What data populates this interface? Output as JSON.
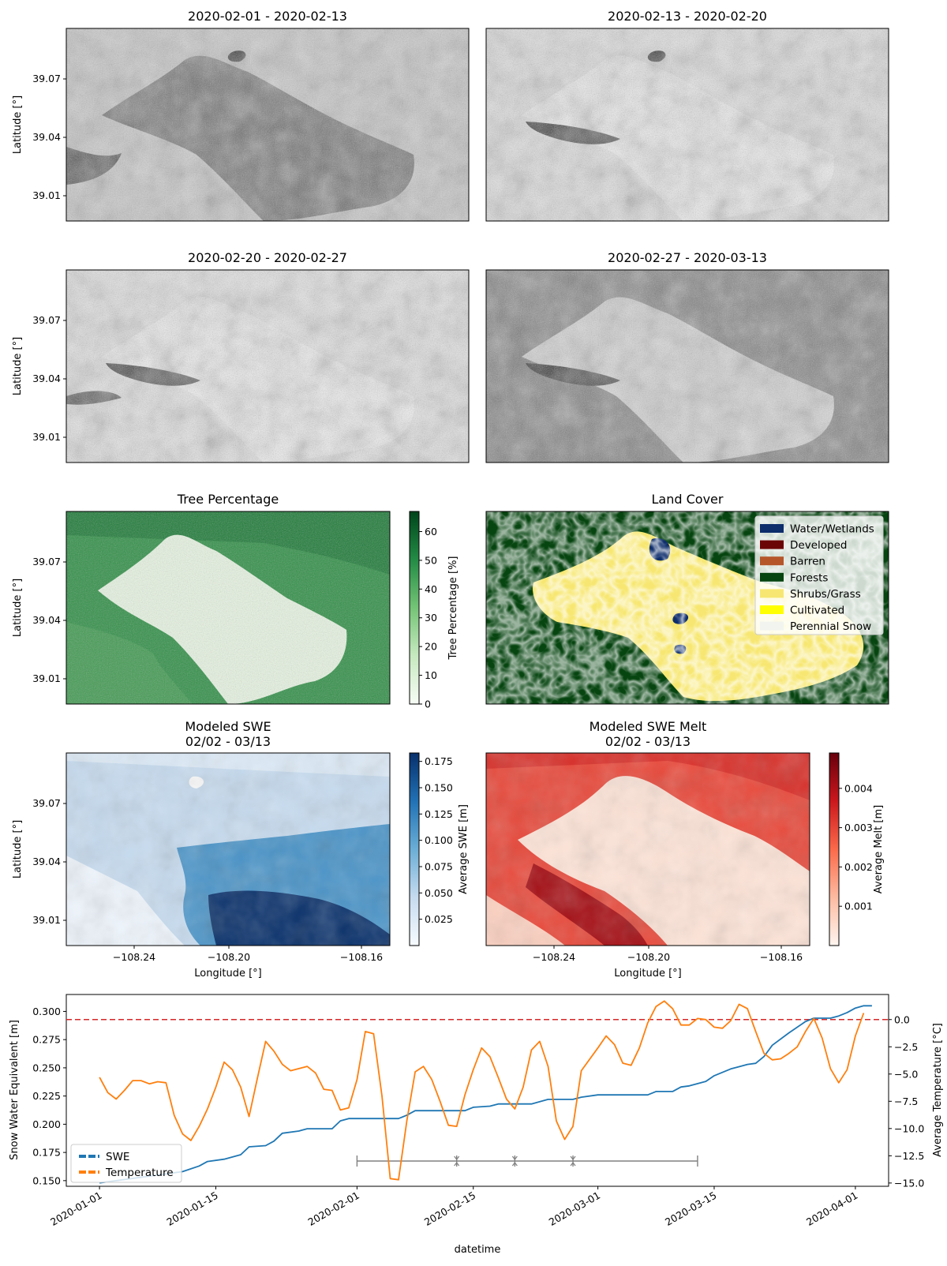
{
  "sar_panels": {
    "titles": [
      "2020-02-01 - 2020-02-13",
      "2020-02-13 - 2020-02-20",
      "2020-02-20 - 2020-02-27",
      "2020-02-27 - 2020-03-13"
    ],
    "ylabel": "Latitude [°]",
    "yticks": [
      "39.07",
      "39.04",
      "39.01"
    ]
  },
  "tree_panel": {
    "title": "Tree Percentage",
    "ylabel": "Latitude [°]",
    "yticks": [
      "39.07",
      "39.04",
      "39.01"
    ],
    "colorbar_label": "Tree Percentage [%]",
    "colorbar_ticks": [
      "0",
      "10",
      "20",
      "30",
      "40",
      "50",
      "60"
    ],
    "colorbar_range": [
      0,
      67
    ]
  },
  "landcover_panel": {
    "title": "Land Cover",
    "legend": [
      {
        "label": "Water/Wetlands",
        "color": "#0d2d6b"
      },
      {
        "label": "Developed",
        "color": "#6b0606"
      },
      {
        "label": "Barren",
        "color": "#b5562a"
      },
      {
        "label": "Forests",
        "color": "#064410"
      },
      {
        "label": "Shrubs/Grass",
        "color": "#f7e772"
      },
      {
        "label": "Cultivated",
        "color": "#ffff00"
      },
      {
        "label": "Perennial Snow",
        "color": "#f2f5ef"
      }
    ]
  },
  "swe_panel": {
    "title_line1": "Modeled SWE",
    "title_line2": "02/02 - 03/13",
    "ylabel": "Latitude [°]",
    "yticks": [
      "39.07",
      "39.04",
      "39.01"
    ],
    "xlabel": "Longitude [°]",
    "xticks": [
      "−108.24",
      "−108.20",
      "−108.16"
    ],
    "colorbar_label": "Average SWE [m]",
    "colorbar_ticks": [
      "0.025",
      "0.050",
      "0.075",
      "0.100",
      "0.125",
      "0.150",
      "0.175"
    ],
    "colorbar_range": [
      0.0,
      0.183
    ]
  },
  "melt_panel": {
    "title_line1": "Modeled SWE Melt",
    "title_line2": "02/02 - 03/13",
    "xlabel": "Longitude [°]",
    "xticks": [
      "−108.24",
      "−108.20",
      "−108.16"
    ],
    "colorbar_label": "Average Melt [m]",
    "colorbar_ticks": [
      "0.001",
      "0.002",
      "0.003",
      "0.004"
    ],
    "colorbar_range": [
      0.0,
      0.0049
    ]
  },
  "timeseries": {
    "xlabel": "datetime",
    "ylabel_left": "Snow Water Equivalent [m]",
    "ylabel_right": "Average Temperature [°C]",
    "xticks": [
      "2020-01-01",
      "2020-01-15",
      "2020-02-01",
      "2020-02-15",
      "2020-03-01",
      "2020-03-15",
      "2020-04-01"
    ],
    "yticks_left": [
      "0.150",
      "0.175",
      "0.200",
      "0.225",
      "0.250",
      "0.275",
      "0.300"
    ],
    "yticks_right": [
      "−15.0",
      "−12.5",
      "−10.0",
      "−7.5",
      "−5.0",
      "−2.5",
      "0.0"
    ],
    "legend": [
      "SWE",
      "Temperature"
    ],
    "colors": {
      "swe": "#1f77b4",
      "temp": "#ff7f0e",
      "zero_line": "#d62728",
      "periods": "#808080"
    }
  },
  "chart_data": [
    {
      "type": "line",
      "x_range": [
        "2019-12-28",
        "2020-04-05"
      ],
      "ylim_left": [
        0.145,
        0.315
      ],
      "ylim_right": [
        -15.3,
        2.3
      ],
      "zero_line_temperature": 0.0,
      "period_markers": [
        "2020-02-01",
        "2020-02-13",
        "2020-02-20",
        "2020-02-27",
        "2020-03-13"
      ],
      "series": [
        {
          "name": "SWE",
          "axis": "left",
          "points": [
            [
              "2020-01-01",
              0.148
            ],
            [
              "2020-01-03",
              0.15
            ],
            [
              "2020-01-05",
              0.152
            ],
            [
              "2020-01-07",
              0.154
            ],
            [
              "2020-01-09",
              0.156
            ],
            [
              "2020-01-11",
              0.158
            ],
            [
              "2020-01-13",
              0.163
            ],
            [
              "2020-01-14",
              0.167
            ],
            [
              "2020-01-16",
              0.169
            ],
            [
              "2020-01-18",
              0.173
            ],
            [
              "2020-01-19",
              0.18
            ],
            [
              "2020-01-21",
              0.181
            ],
            [
              "2020-01-22",
              0.185
            ],
            [
              "2020-01-23",
              0.192
            ],
            [
              "2020-01-25",
              0.194
            ],
            [
              "2020-01-26",
              0.196
            ],
            [
              "2020-01-29",
              0.196
            ],
            [
              "2020-01-30",
              0.203
            ],
            [
              "2020-01-31",
              0.205
            ],
            [
              "2020-02-06",
              0.205
            ],
            [
              "2020-02-07",
              0.208
            ],
            [
              "2020-02-08",
              0.212
            ],
            [
              "2020-02-14",
              0.212
            ],
            [
              "2020-02-15",
              0.215
            ],
            [
              "2020-02-17",
              0.216
            ],
            [
              "2020-02-18",
              0.218
            ],
            [
              "2020-02-22",
              0.218
            ],
            [
              "2020-02-24",
              0.222
            ],
            [
              "2020-02-27",
              0.222
            ],
            [
              "2020-02-28",
              0.224
            ],
            [
              "2020-03-01",
              0.226
            ],
            [
              "2020-03-07",
              0.226
            ],
            [
              "2020-03-08",
              0.229
            ],
            [
              "2020-03-10",
              0.229
            ],
            [
              "2020-03-11",
              0.233
            ],
            [
              "2020-03-12",
              0.234
            ],
            [
              "2020-03-14",
              0.238
            ],
            [
              "2020-03-15",
              0.243
            ],
            [
              "2020-03-17",
              0.249
            ],
            [
              "2020-03-18",
              0.251
            ],
            [
              "2020-03-19",
              0.253
            ],
            [
              "2020-03-20",
              0.254
            ],
            [
              "2020-03-21",
              0.26
            ],
            [
              "2020-03-22",
              0.27
            ],
            [
              "2020-03-24",
              0.281
            ],
            [
              "2020-03-26",
              0.291
            ],
            [
              "2020-03-27",
              0.294
            ],
            [
              "2020-03-29",
              0.294
            ],
            [
              "2020-03-30",
              0.296
            ],
            [
              "2020-03-31",
              0.299
            ],
            [
              "2020-04-01",
              0.303
            ],
            [
              "2020-04-02",
              0.305
            ],
            [
              "2020-04-03",
              0.305
            ]
          ]
        },
        {
          "name": "Temperature",
          "axis": "right",
          "points": [
            [
              "2020-01-01",
              -5.3
            ],
            [
              "2020-01-02",
              -6.7
            ],
            [
              "2020-01-03",
              -7.3
            ],
            [
              "2020-01-04",
              -6.5
            ],
            [
              "2020-01-05",
              -5.6
            ],
            [
              "2020-01-06",
              -5.6
            ],
            [
              "2020-01-07",
              -5.9
            ],
            [
              "2020-01-08",
              -5.7
            ],
            [
              "2020-01-09",
              -5.8
            ],
            [
              "2020-01-10",
              -8.8
            ],
            [
              "2020-01-11",
              -10.5
            ],
            [
              "2020-01-12",
              -11.1
            ],
            [
              "2020-01-13",
              -9.8
            ],
            [
              "2020-01-14",
              -8.2
            ],
            [
              "2020-01-15",
              -6.2
            ],
            [
              "2020-01-16",
              -3.9
            ],
            [
              "2020-01-17",
              -4.6
            ],
            [
              "2020-01-18",
              -6.2
            ],
            [
              "2020-01-19",
              -8.9
            ],
            [
              "2020-01-20",
              -5.4
            ],
            [
              "2020-01-21",
              -2.0
            ],
            [
              "2020-01-22",
              -2.9
            ],
            [
              "2020-01-23",
              -4.1
            ],
            [
              "2020-01-24",
              -4.7
            ],
            [
              "2020-01-25",
              -4.5
            ],
            [
              "2020-01-26",
              -4.3
            ],
            [
              "2020-01-27",
              -4.9
            ],
            [
              "2020-01-28",
              -6.4
            ],
            [
              "2020-01-29",
              -6.5
            ],
            [
              "2020-01-30",
              -8.3
            ],
            [
              "2020-01-31",
              -8.1
            ],
            [
              "2020-02-01",
              -5.5
            ],
            [
              "2020-02-02",
              -1.1
            ],
            [
              "2020-02-03",
              -1.3
            ],
            [
              "2020-02-04",
              -7.0
            ],
            [
              "2020-02-05",
              -14.6
            ],
            [
              "2020-02-06",
              -14.7
            ],
            [
              "2020-02-07",
              -9.3
            ],
            [
              "2020-02-08",
              -4.8
            ],
            [
              "2020-02-09",
              -4.3
            ],
            [
              "2020-02-10",
              -5.5
            ],
            [
              "2020-02-11",
              -7.5
            ],
            [
              "2020-02-12",
              -9.7
            ],
            [
              "2020-02-13",
              -9.8
            ],
            [
              "2020-02-14",
              -6.9
            ],
            [
              "2020-02-15",
              -4.6
            ],
            [
              "2020-02-16",
              -2.6
            ],
            [
              "2020-02-17",
              -3.4
            ],
            [
              "2020-02-18",
              -5.3
            ],
            [
              "2020-02-19",
              -7.3
            ],
            [
              "2020-02-20",
              -8.2
            ],
            [
              "2020-02-21",
              -6.2
            ],
            [
              "2020-02-22",
              -2.8
            ],
            [
              "2020-02-23",
              -2.0
            ],
            [
              "2020-02-24",
              -4.3
            ],
            [
              "2020-02-25",
              -9.3
            ],
            [
              "2020-02-26",
              -11.0
            ],
            [
              "2020-02-27",
              -9.8
            ],
            [
              "2020-02-28",
              -4.7
            ],
            [
              "2020-03-01",
              -2.6
            ],
            [
              "2020-03-02",
              -1.5
            ],
            [
              "2020-03-03",
              -2.3
            ],
            [
              "2020-03-04",
              -4.0
            ],
            [
              "2020-03-05",
              -4.2
            ],
            [
              "2020-03-06",
              -2.6
            ],
            [
              "2020-03-07",
              -0.3
            ],
            [
              "2020-03-08",
              1.2
            ],
            [
              "2020-03-09",
              1.7
            ],
            [
              "2020-03-10",
              1.0
            ],
            [
              "2020-03-11",
              -0.5
            ],
            [
              "2020-03-12",
              -0.5
            ],
            [
              "2020-03-13",
              0.1
            ],
            [
              "2020-03-14",
              0.0
            ],
            [
              "2020-03-15",
              -0.7
            ],
            [
              "2020-03-16",
              -0.8
            ],
            [
              "2020-03-17",
              -0.1
            ],
            [
              "2020-03-18",
              1.4
            ],
            [
              "2020-03-19",
              1.0
            ],
            [
              "2020-03-20",
              -1.1
            ],
            [
              "2020-03-21",
              -3.1
            ],
            [
              "2020-03-22",
              -3.7
            ],
            [
              "2020-03-23",
              -3.6
            ],
            [
              "2020-03-24",
              -3.1
            ],
            [
              "2020-03-25",
              -2.5
            ],
            [
              "2020-03-26",
              -1.1
            ],
            [
              "2020-03-27",
              0.1
            ],
            [
              "2020-03-28",
              -1.7
            ],
            [
              "2020-03-29",
              -4.5
            ],
            [
              "2020-03-30",
              -5.8
            ],
            [
              "2020-03-31",
              -4.6
            ],
            [
              "2020-04-01",
              -1.5
            ],
            [
              "2020-04-02",
              0.6
            ]
          ]
        }
      ]
    }
  ]
}
